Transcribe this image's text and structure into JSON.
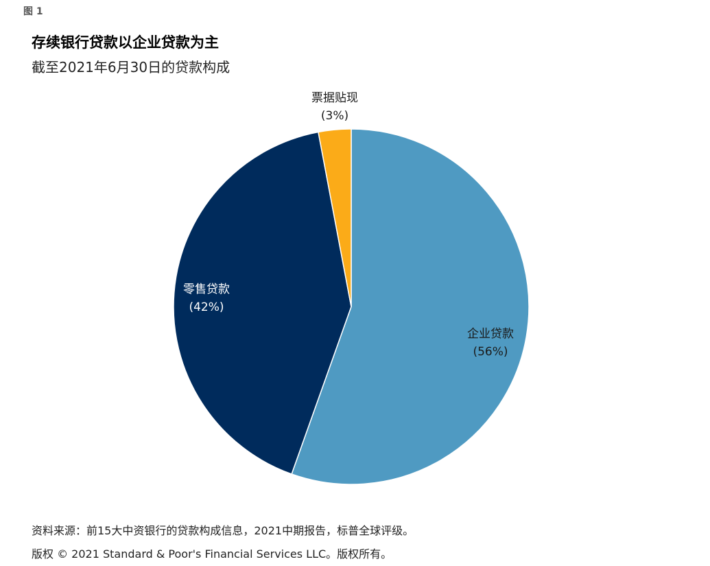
{
  "figure_label": "图 1",
  "footer": {
    "source": "资料来源：前15大中资银行的贷款构成信息，2021中期报告，标普全球评级。",
    "copyright": "版权 © 2021 Standard & Poor's Financial Services LLC。版权所有。"
  },
  "chart_data": {
    "type": "pie",
    "title": "存续银行贷款以企业贷款为主",
    "subtitle": "截至2021年6月30日的贷款构成",
    "slices": [
      {
        "label": "企业贷款",
        "value": 56,
        "value_label": "(56%)",
        "color": "#4f9ac2"
      },
      {
        "label": "零售贷款",
        "value": 42,
        "value_label": "(42%)",
        "color": "#002b5c"
      },
      {
        "label": "票据贴现",
        "value": 3,
        "value_label": "(3%)",
        "color": "#fbab18"
      }
    ],
    "start_angle": "12 o'clock",
    "direction": "clockwise",
    "legend": "none"
  }
}
